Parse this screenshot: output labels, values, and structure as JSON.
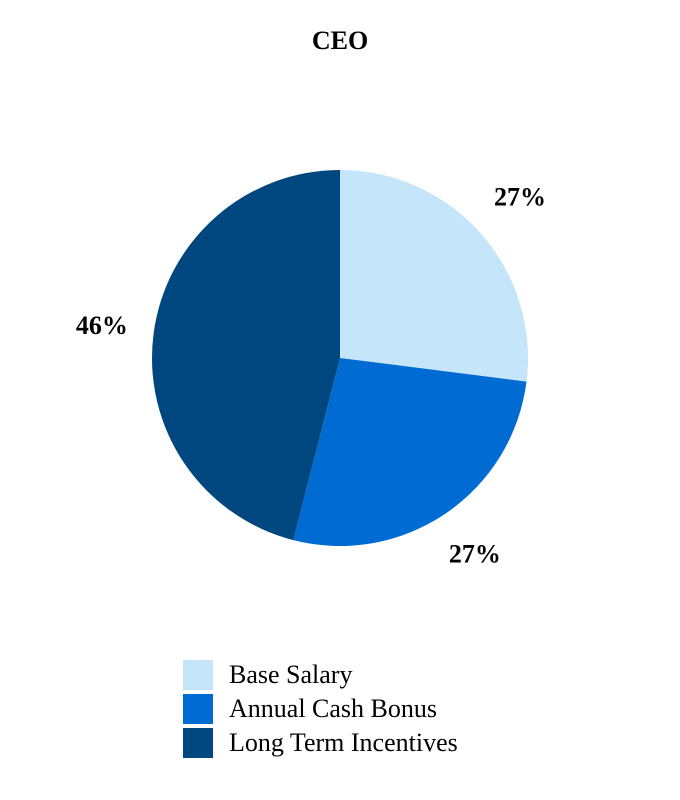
{
  "chart_data": {
    "type": "pie",
    "title": "CEO",
    "categories": [
      "Base Salary",
      "Annual Cash Bonus",
      "Long Term Incentives"
    ],
    "values": [
      27,
      27,
      46
    ],
    "value_labels": [
      "27%",
      "27%",
      "46%"
    ],
    "colors": [
      "#c5e5fb",
      "#006bd3",
      "#00477f"
    ]
  }
}
